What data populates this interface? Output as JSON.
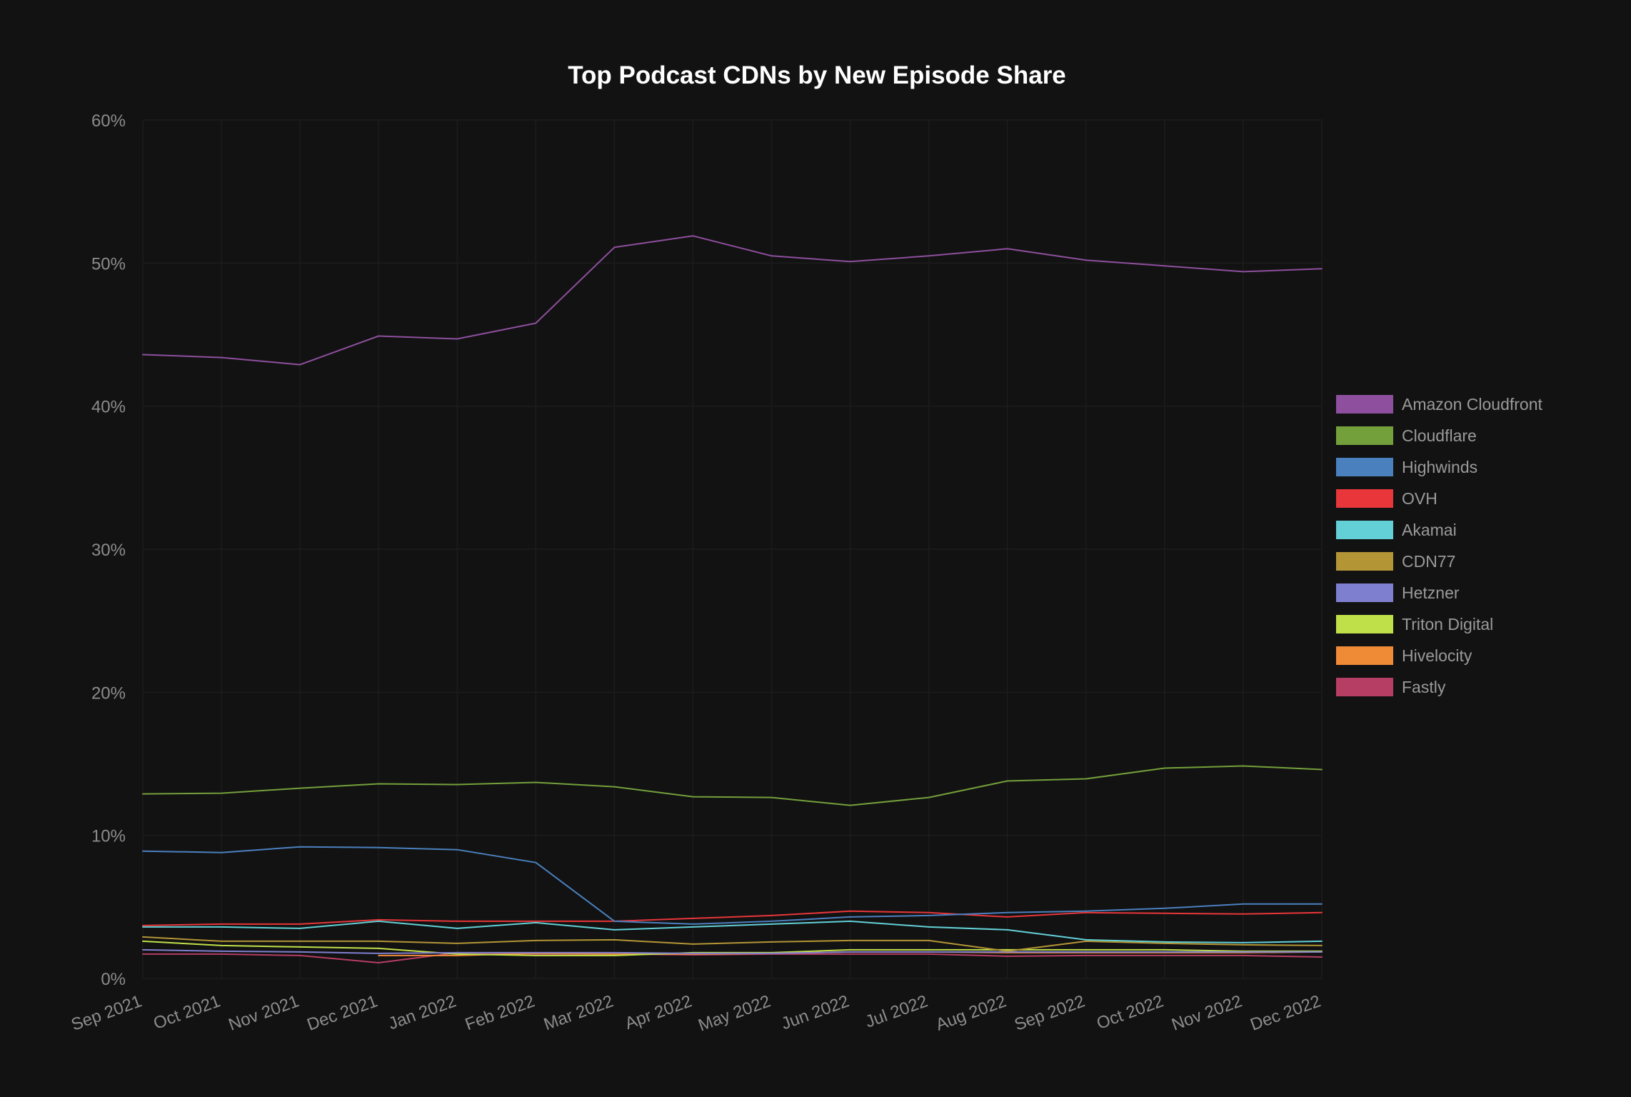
{
  "chart_data": {
    "type": "line",
    "title": "Top Podcast CDNs by New Episode Share",
    "xlabel": "",
    "ylabel": "",
    "ylim": [
      0,
      60
    ],
    "yticks": [
      "0%",
      "10%",
      "20%",
      "30%",
      "40%",
      "50%",
      "60%"
    ],
    "grid": true,
    "legend_position": "right",
    "categories": [
      "Sep 2021",
      "Oct 2021",
      "Nov 2021",
      "Dec 2021",
      "Jan 2022",
      "Feb 2022",
      "Mar 2022",
      "Apr 2022",
      "May 2022",
      "Jun 2022",
      "Jul 2022",
      "Aug 2022",
      "Sep 2022",
      "Oct 2022",
      "Nov 2022",
      "Dec 2022"
    ],
    "series": [
      {
        "name": "Amazon Cloudfront",
        "color": "#8e4f9e",
        "values": [
          43.6,
          43.4,
          42.9,
          44.9,
          44.7,
          45.8,
          51.1,
          51.9,
          50.5,
          50.1,
          50.5,
          51.0,
          50.2,
          49.8,
          49.4,
          49.6
        ]
      },
      {
        "name": "Cloudflare",
        "color": "#74a03b",
        "values": [
          12.9,
          12.95,
          13.3,
          13.6,
          13.55,
          13.7,
          13.4,
          12.7,
          12.65,
          12.1,
          12.65,
          13.8,
          13.95,
          14.7,
          14.85,
          14.6
        ]
      },
      {
        "name": "Highwinds",
        "color": "#4b80bf",
        "values": [
          8.9,
          8.8,
          9.2,
          9.15,
          9.0,
          8.1,
          4.0,
          3.8,
          4.0,
          4.3,
          4.4,
          4.6,
          4.7,
          4.9,
          5.2,
          5.2
        ]
      },
      {
        "name": "OVH",
        "color": "#e8363a",
        "values": [
          3.7,
          3.8,
          3.8,
          4.1,
          4.0,
          4.0,
          4.0,
          4.2,
          4.4,
          4.7,
          4.6,
          4.3,
          4.6,
          4.55,
          4.5,
          4.6
        ]
      },
      {
        "name": "Akamai",
        "color": "#62d0d6",
        "values": [
          3.6,
          3.6,
          3.5,
          4.0,
          3.5,
          3.9,
          3.4,
          3.6,
          3.8,
          4.0,
          3.6,
          3.4,
          2.7,
          2.55,
          2.5,
          2.6
        ]
      },
      {
        "name": "CDN77",
        "color": "#b39535",
        "values": [
          2.9,
          2.6,
          2.6,
          2.6,
          2.45,
          2.65,
          2.7,
          2.4,
          2.55,
          2.65,
          2.65,
          1.9,
          2.6,
          2.45,
          2.35,
          2.3
        ]
      },
      {
        "name": "Hetzner",
        "color": "#7f7fd0",
        "values": [
          2.0,
          1.9,
          1.85,
          1.75,
          1.8,
          1.8,
          1.8,
          1.75,
          1.75,
          1.85,
          1.85,
          1.85,
          1.85,
          1.85,
          1.85,
          1.85
        ]
      },
      {
        "name": "Triton Digital",
        "color": "#bfe048",
        "values": [
          2.6,
          2.3,
          2.2,
          2.1,
          1.7,
          1.6,
          1.6,
          1.8,
          1.8,
          2.0,
          2.0,
          2.0,
          2.0,
          2.0,
          1.9,
          1.9
        ]
      },
      {
        "name": "Hivelocity",
        "color": "#ef8a37",
        "values": [
          null,
          null,
          null,
          1.6,
          1.6,
          1.75,
          1.7,
          1.7,
          1.75,
          1.85,
          1.85,
          1.8,
          1.8,
          1.8,
          1.8,
          1.85
        ]
      },
      {
        "name": "Fastly",
        "color": "#b63d64",
        "values": [
          1.7,
          1.7,
          1.6,
          1.1,
          1.8,
          1.7,
          1.7,
          1.65,
          1.7,
          1.7,
          1.7,
          1.55,
          1.6,
          1.6,
          1.6,
          1.5
        ]
      }
    ]
  }
}
